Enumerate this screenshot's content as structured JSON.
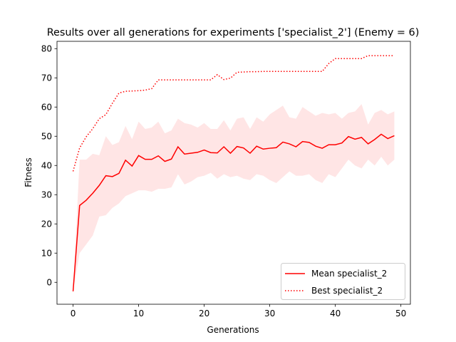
{
  "chart_data": {
    "type": "line",
    "title": "Results over all generations for experiments ['specialist_2'] (Enemy = 6)",
    "xlabel": "Generations",
    "ylabel": "Fitness",
    "xlim": [
      -2.45,
      51.45
    ],
    "ylim": [
      -7.5,
      82.5
    ],
    "xticks": [
      0,
      10,
      20,
      30,
      40,
      50
    ],
    "yticks": [
      0,
      10,
      20,
      30,
      40,
      50,
      60,
      70,
      80
    ],
    "grid": false,
    "legend_position": "lower right",
    "x": [
      0,
      1,
      2,
      3,
      4,
      5,
      6,
      7,
      8,
      9,
      10,
      11,
      12,
      13,
      14,
      15,
      16,
      17,
      18,
      19,
      20,
      21,
      22,
      23,
      24,
      25,
      26,
      27,
      28,
      29,
      30,
      31,
      32,
      33,
      34,
      35,
      36,
      37,
      38,
      39,
      40,
      41,
      42,
      43,
      44,
      45,
      46,
      47,
      48,
      49
    ],
    "series": [
      {
        "name": "Mean specialist_2",
        "style": "solid",
        "color": "#ff0000",
        "values": [
          -3.1,
          26.3,
          28.1,
          30.5,
          33.2,
          36.5,
          36.2,
          37.3,
          41.8,
          39.8,
          43.4,
          42.1,
          42.1,
          43.3,
          41.4,
          42.2,
          46.4,
          43.9,
          44.2,
          44.5,
          45.3,
          44.4,
          44.3,
          46.4,
          44.2,
          46.5,
          46.0,
          44.2,
          46.6,
          45.6,
          45.9,
          46.1,
          48.0,
          47.4,
          46.4,
          48.2,
          47.9,
          46.6,
          45.9,
          47.1,
          47.1,
          47.7,
          49.9,
          49.0,
          49.6,
          47.4,
          48.9,
          50.7,
          49.2,
          50.2
        ],
        "band_upper": [
          -3.1,
          42.0,
          42.0,
          44.0,
          43.5,
          50.0,
          47.0,
          48.0,
          53.5,
          49.0,
          55.0,
          52.5,
          53.0,
          55.0,
          51.0,
          52.0,
          56.0,
          54.5,
          54.0,
          53.0,
          54.5,
          52.5,
          52.5,
          55.5,
          52.0,
          56.0,
          56.5,
          52.5,
          56.5,
          55.0,
          57.5,
          59.0,
          60.5,
          56.5,
          56.0,
          60.0,
          58.5,
          57.0,
          58.0,
          57.5,
          58.0,
          56.0,
          58.0,
          58.5,
          61.0,
          54.0,
          58.0,
          59.0,
          57.5,
          58.5
        ],
        "band_lower": [
          -3.1,
          10.0,
          13.0,
          16.0,
          22.5,
          23.0,
          25.5,
          27.0,
          29.5,
          30.5,
          31.5,
          31.5,
          31.0,
          32.0,
          32.0,
          32.5,
          37.0,
          33.5,
          34.5,
          36.0,
          36.5,
          37.5,
          35.5,
          37.0,
          36.0,
          36.5,
          35.5,
          35.0,
          37.0,
          36.5,
          35.0,
          34.0,
          36.0,
          38.0,
          36.5,
          36.5,
          37.0,
          35.0,
          34.0,
          37.0,
          36.0,
          39.0,
          42.0,
          40.0,
          39.0,
          42.0,
          40.0,
          43.0,
          40.0,
          42.0
        ],
        "band_color": "#ffcccc"
      },
      {
        "name": "Best specialist_2",
        "style": "dotted",
        "color": "#ff0000",
        "values": [
          38.0,
          46.0,
          49.8,
          52.6,
          56.0,
          57.4,
          61.3,
          64.8,
          65.4,
          65.5,
          65.6,
          65.8,
          66.3,
          69.3,
          69.3,
          69.3,
          69.3,
          69.3,
          69.3,
          69.3,
          69.3,
          69.3,
          71.1,
          69.4,
          69.9,
          71.9,
          72.0,
          72.1,
          72.1,
          72.2,
          72.2,
          72.2,
          72.2,
          72.2,
          72.2,
          72.2,
          72.2,
          72.2,
          72.2,
          74.9,
          76.6,
          76.6,
          76.6,
          76.6,
          76.6,
          77.6,
          77.6,
          77.6,
          77.6,
          77.6
        ]
      }
    ]
  }
}
